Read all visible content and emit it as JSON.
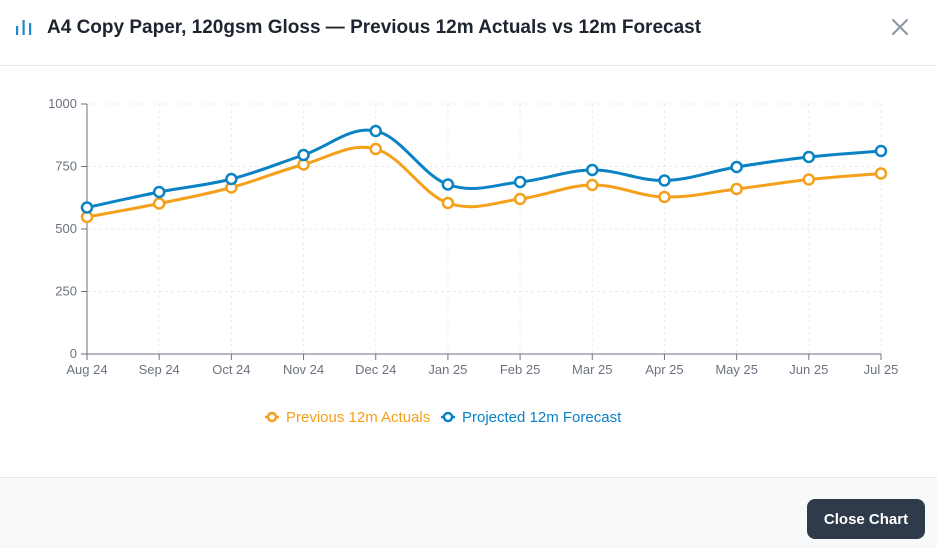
{
  "header": {
    "title": "A4 Copy Paper, 120gsm Gloss — Previous 12m Actuals vs 12m Forecast",
    "icon": "bar-chart-icon",
    "close_icon": "close-icon"
  },
  "footer": {
    "close_label": "Close Chart"
  },
  "colors": {
    "actuals": "#f5a01a",
    "forecast": "#0a82c4",
    "grid": "#e8ebf0",
    "axis": "#6b7280"
  },
  "chart_data": {
    "type": "line",
    "title": "A4 Copy Paper, 120gsm Gloss — Previous 12m Actuals vs 12m Forecast",
    "xlabel": "",
    "ylabel": "",
    "categories": [
      "Aug 24",
      "Sep 24",
      "Oct 24",
      "Nov 24",
      "Dec 24",
      "Jan 25",
      "Feb 25",
      "Mar 25",
      "Apr 25",
      "May 25",
      "Jun 25",
      "Jul 25"
    ],
    "yticks": [
      "0",
      "250",
      "500",
      "750",
      "1000"
    ],
    "ylim": [
      0,
      1000
    ],
    "grid": true,
    "legend_position": "bottom",
    "series": [
      {
        "name": "Previous 12m Actuals",
        "values": [
          548,
          602,
          666,
          758,
          820,
          604,
          620,
          676,
          628,
          660,
          698,
          722
        ]
      },
      {
        "name": "Projected 12m Forecast",
        "values": [
          586,
          648,
          700,
          796,
          892,
          678,
          688,
          736,
          694,
          748,
          788,
          812
        ]
      }
    ]
  }
}
